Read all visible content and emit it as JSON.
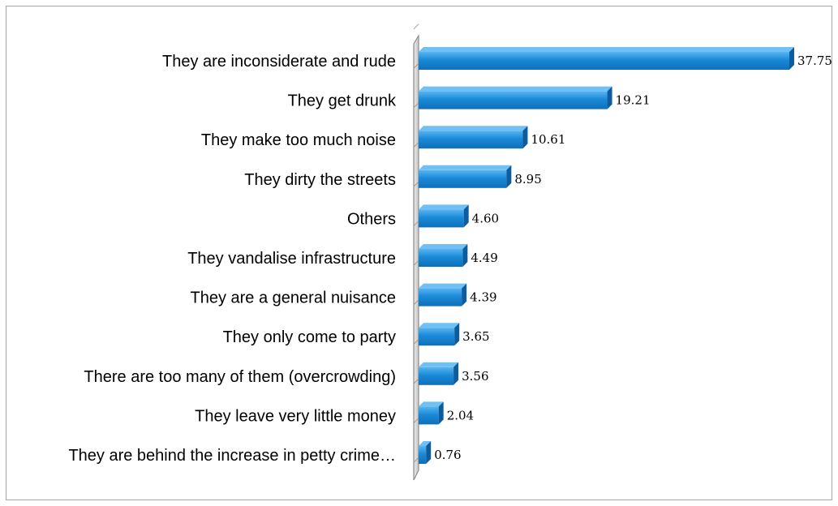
{
  "chart_data": {
    "type": "bar",
    "orientation": "horizontal",
    "style": "3d",
    "categories": [
      "They are inconsiderate and rude",
      "They get drunk",
      "They make too much noise",
      "They dirty the streets",
      "Others",
      "They vandalise infrastructure",
      "They are a general nuisance",
      "They only come to party",
      "There are too many of them (overcrowding)",
      "They leave very little money",
      "They are behind the increase in petty crime…"
    ],
    "values": [
      37.75,
      19.21,
      10.61,
      8.95,
      4.6,
      4.49,
      4.39,
      3.65,
      3.56,
      2.04,
      0.76
    ],
    "value_labels": [
      "37.75",
      "19.21",
      "10.61",
      "8.95",
      "4.60",
      "4.49",
      "4.39",
      "3.65",
      "3.56",
      "2.04",
      "0.76"
    ],
    "xlim": [
      0,
      38
    ],
    "grid": false,
    "legend": "none",
    "colors": {
      "bar": "#1a8ad8",
      "bar_top": "#6ec0f5",
      "bar_side": "#0d5c9e",
      "wall": "#bfbfbf",
      "frame": "#a6a6a6"
    }
  }
}
